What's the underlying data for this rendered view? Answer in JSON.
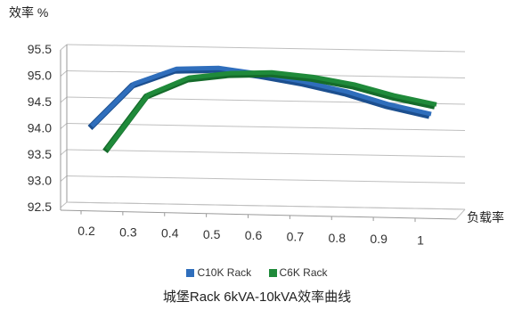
{
  "chart_data": {
    "type": "line",
    "title": "城堡Rack 6kVA-10kVA效率曲线",
    "ylabel": "效率 %",
    "xlabel": "负载率",
    "categories": [
      "0.2",
      "0.3",
      "0.4",
      "0.5",
      "0.6",
      "0.7",
      "0.8",
      "0.9",
      "1"
    ],
    "ylim": [
      92.5,
      95.5
    ],
    "yticks": [
      "92.5",
      "93.0",
      "93.5",
      "94.0",
      "94.5",
      "95.0",
      "95.5"
    ],
    "grid": true,
    "legend_position": "bottom",
    "series": [
      {
        "name": "C10K Rack",
        "color": "#2f6ebc",
        "values": [
          94.0,
          94.82,
          95.12,
          95.15,
          95.05,
          94.92,
          94.75,
          94.52,
          94.35
        ]
      },
      {
        "name": "C6K Rack",
        "color": "#1f8a3a",
        "values": [
          93.62,
          94.68,
          95.02,
          95.12,
          95.15,
          95.08,
          94.95,
          94.75,
          94.6
        ]
      }
    ]
  }
}
